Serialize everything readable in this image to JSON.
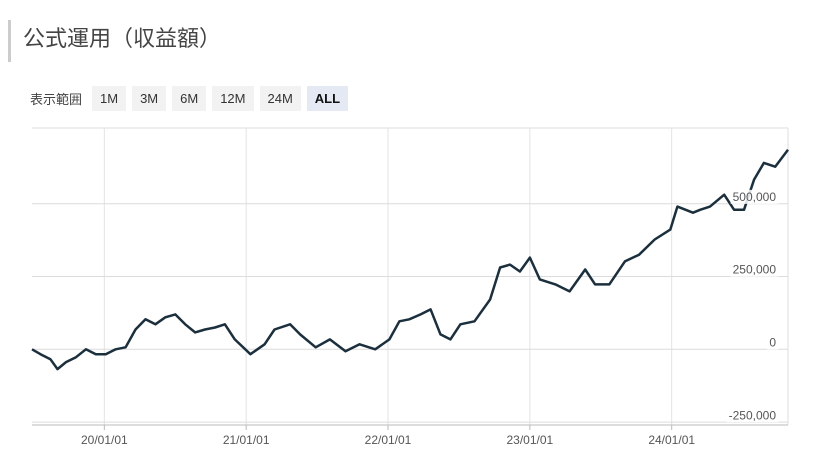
{
  "header": {
    "title": "公式運用（収益額）"
  },
  "range_selector": {
    "label": "表示範囲",
    "options": [
      "1M",
      "3M",
      "6M",
      "12M",
      "24M",
      "ALL"
    ],
    "active": "ALL"
  },
  "chart_data": {
    "type": "line",
    "x": [
      2019.49,
      2019.55,
      2019.62,
      2019.67,
      2019.73,
      2019.8,
      2019.87,
      2019.94,
      2020.01,
      2020.08,
      2020.15,
      2020.22,
      2020.29,
      2020.36,
      2020.43,
      2020.5,
      2020.57,
      2020.64,
      2020.71,
      2020.78,
      2020.85,
      2020.92,
      2021.03,
      2021.13,
      2021.2,
      2021.31,
      2021.38,
      2021.49,
      2021.59,
      2021.7,
      2021.8,
      2021.91,
      2022.01,
      2022.08,
      2022.15,
      2022.23,
      2022.3,
      2022.37,
      2022.44,
      2022.51,
      2022.61,
      2022.72,
      2022.79,
      2022.86,
      2022.93,
      2023.0,
      2023.07,
      2023.18,
      2023.28,
      2023.39,
      2023.46,
      2023.56,
      2023.67,
      2023.77,
      2023.88,
      2023.99,
      2024.04,
      2024.15,
      2024.2,
      2024.27,
      2024.37,
      2024.44,
      2024.51,
      2024.58,
      2024.65,
      2024.73,
      2024.82
    ],
    "series": [
      {
        "color": "#1b2f3d",
        "values": [
          0,
          -17000,
          -34000,
          -68000,
          -44000,
          -27000,
          0,
          -17000,
          -17000,
          0,
          7000,
          68000,
          103000,
          86000,
          110000,
          120000,
          86000,
          58000,
          68000,
          75000,
          86000,
          34000,
          -17000,
          17000,
          68000,
          86000,
          51000,
          7000,
          34000,
          -7000,
          17000,
          0,
          34000,
          96000,
          103000,
          120000,
          137000,
          51000,
          34000,
          86000,
          96000,
          171000,
          281000,
          291000,
          267000,
          315000,
          240000,
          223000,
          199000,
          274000,
          223000,
          223000,
          302000,
          325000,
          377000,
          411000,
          490000,
          469000,
          479000,
          490000,
          531000,
          479000,
          479000,
          582000,
          640000,
          627000,
          685000
        ]
      }
    ],
    "xlim": [
      2019.49,
      2024.82
    ],
    "xticks": [
      {
        "value": 2020,
        "label": "20/01/01"
      },
      {
        "value": 2021,
        "label": "21/01/01"
      },
      {
        "value": 2022,
        "label": "22/01/01"
      },
      {
        "value": 2023,
        "label": "23/01/01"
      },
      {
        "value": 2024,
        "label": "24/01/01"
      }
    ],
    "ylim": [
      -260000,
      760000
    ],
    "yticks": [
      {
        "value": -250000,
        "label": "-250,000"
      },
      0,
      {
        "value": 250000,
        "label": "250,000"
      },
      {
        "value": 500000,
        "label": "500,000"
      }
    ],
    "grid": true
  }
}
